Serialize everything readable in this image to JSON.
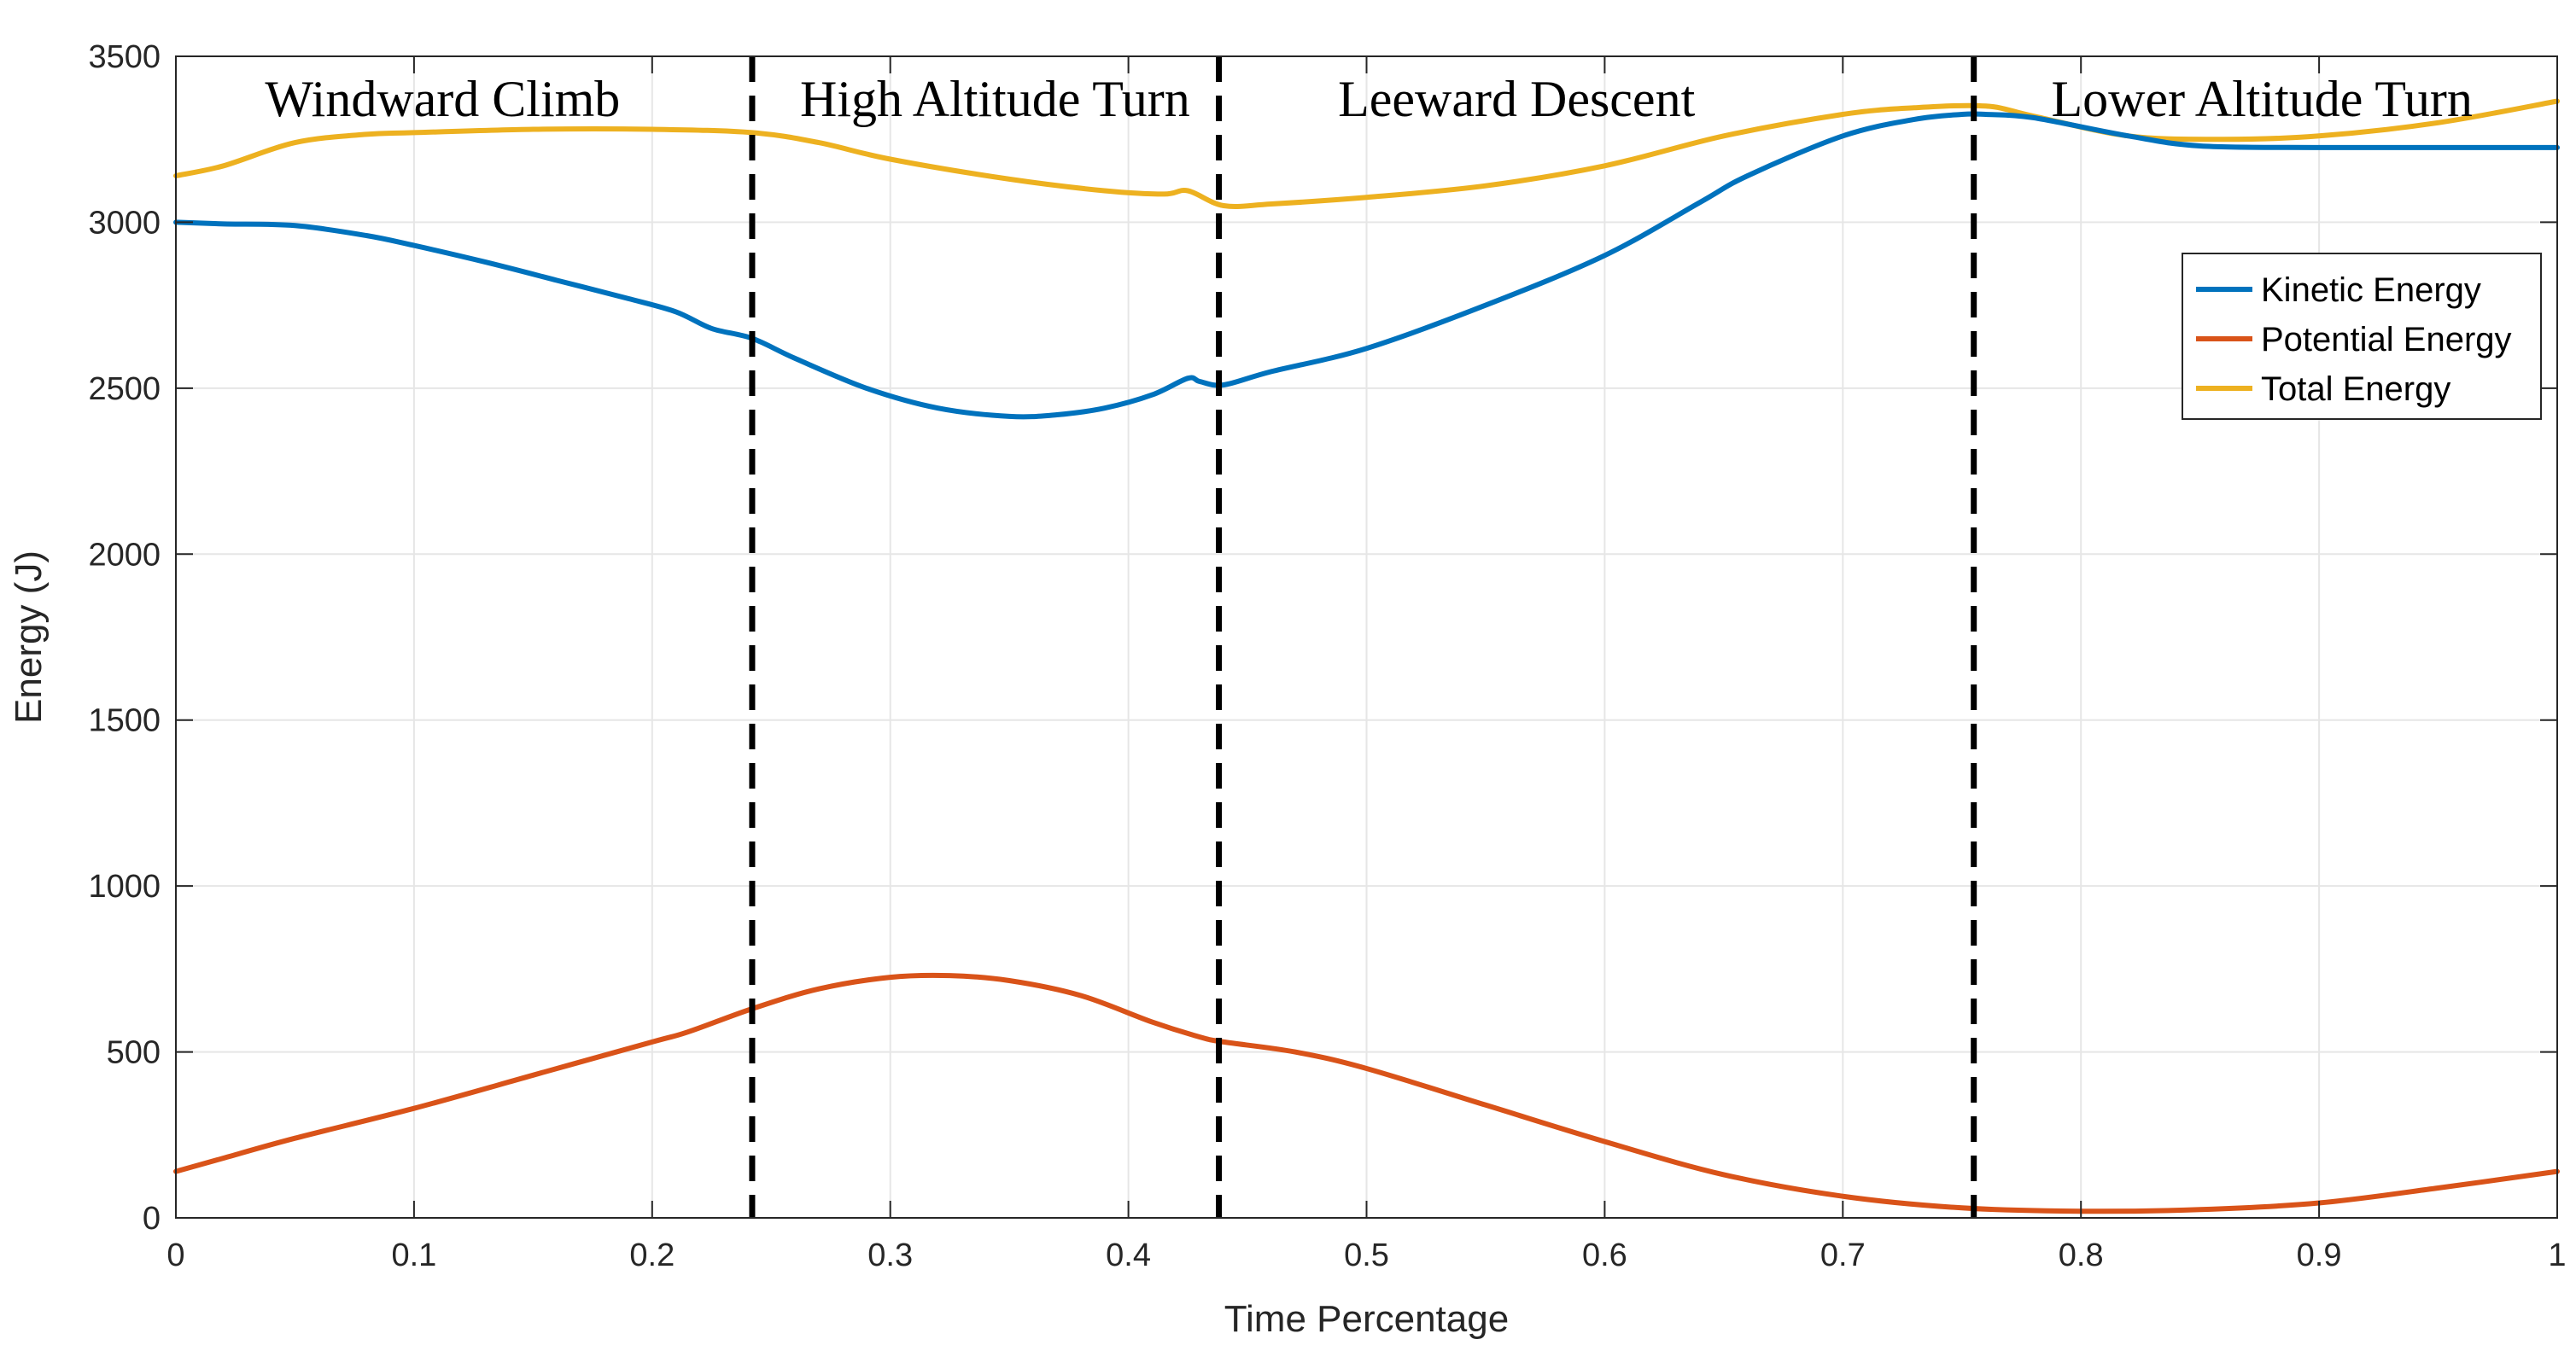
{
  "chart_data": {
    "type": "line",
    "title": "",
    "xlabel": "Time Percentage",
    "ylabel": "Energy (J)",
    "xlim": [
      0,
      1
    ],
    "ylim": [
      0,
      3500
    ],
    "grid": true,
    "xticks": [
      0,
      0.1,
      0.2,
      0.3,
      0.4,
      0.5,
      0.6,
      0.7,
      0.8,
      0.9,
      1
    ],
    "xtick_labels": [
      "0",
      "0.1",
      "0.2",
      "0.3",
      "0.4",
      "0.5",
      "0.6",
      "0.7",
      "0.8",
      "0.9",
      "1"
    ],
    "yticks": [
      0,
      500,
      1000,
      1500,
      2000,
      2500,
      3000,
      3500
    ],
    "ytick_labels": [
      "0",
      "500",
      "1000",
      "1500",
      "2000",
      "2500",
      "3000",
      "3500"
    ],
    "legend_position": "right, upper-middle",
    "series": [
      {
        "name": "Kinetic Energy",
        "color": "#0072BD",
        "x": [
          0,
          0.02,
          0.05,
          0.08,
          0.1,
          0.13,
          0.16,
          0.19,
          0.21,
          0.225,
          0.242,
          0.26,
          0.29,
          0.32,
          0.35,
          0.37,
          0.39,
          0.41,
          0.425,
          0.43,
          0.44,
          0.46,
          0.5,
          0.55,
          0.6,
          0.64,
          0.66,
          0.7,
          0.73,
          0.75,
          0.76,
          0.78,
          0.82,
          0.85,
          0.9,
          0.95,
          1
        ],
        "values": [
          3000,
          2995,
          2990,
          2960,
          2930,
          2880,
          2825,
          2770,
          2730,
          2680,
          2650,
          2590,
          2500,
          2440,
          2415,
          2420,
          2440,
          2480,
          2530,
          2520,
          2510,
          2550,
          2620,
          2750,
          2900,
          3060,
          3140,
          3260,
          3310,
          3325,
          3325,
          3315,
          3260,
          3230,
          3225,
          3225,
          3225
        ]
      },
      {
        "name": "Potential Energy",
        "color": "#D95319",
        "x": [
          0,
          0.02,
          0.05,
          0.1,
          0.15,
          0.2,
          0.215,
          0.242,
          0.27,
          0.3,
          0.325,
          0.35,
          0.38,
          0.41,
          0.43,
          0.44,
          0.47,
          0.5,
          0.55,
          0.6,
          0.65,
          0.7,
          0.75,
          0.8,
          0.85,
          0.9,
          0.95,
          1
        ],
        "values": [
          140,
          180,
          240,
          330,
          430,
          530,
          560,
          630,
          690,
          725,
          730,
          715,
          670,
          590,
          545,
          530,
          500,
          450,
          340,
          230,
          130,
          65,
          30,
          20,
          25,
          45,
          90,
          140
        ]
      },
      {
        "name": "Total Energy",
        "color": "#EDB120",
        "x": [
          0,
          0.02,
          0.05,
          0.08,
          0.1,
          0.15,
          0.2,
          0.242,
          0.27,
          0.3,
          0.35,
          0.39,
          0.415,
          0.425,
          0.44,
          0.46,
          0.5,
          0.55,
          0.6,
          0.65,
          0.7,
          0.73,
          0.76,
          0.78,
          0.82,
          0.86,
          0.9,
          0.95,
          1
        ],
        "values": [
          3140,
          3170,
          3240,
          3265,
          3270,
          3280,
          3280,
          3270,
          3240,
          3190,
          3130,
          3095,
          3085,
          3095,
          3050,
          3055,
          3075,
          3110,
          3170,
          3260,
          3325,
          3345,
          3350,
          3320,
          3260,
          3250,
          3260,
          3300,
          3365
        ]
      }
    ],
    "phase_boundaries": [
      0.242,
      0.438,
      0.755
    ],
    "annotations": [
      {
        "text": "Windward Climb",
        "x_center": 0.112
      },
      {
        "text": "High Altitude Turn",
        "x_center": 0.344
      },
      {
        "text": "Leeward Descent",
        "x_center": 0.563
      },
      {
        "text": "Lower Altitude Turn",
        "x_center": 0.876
      }
    ]
  }
}
